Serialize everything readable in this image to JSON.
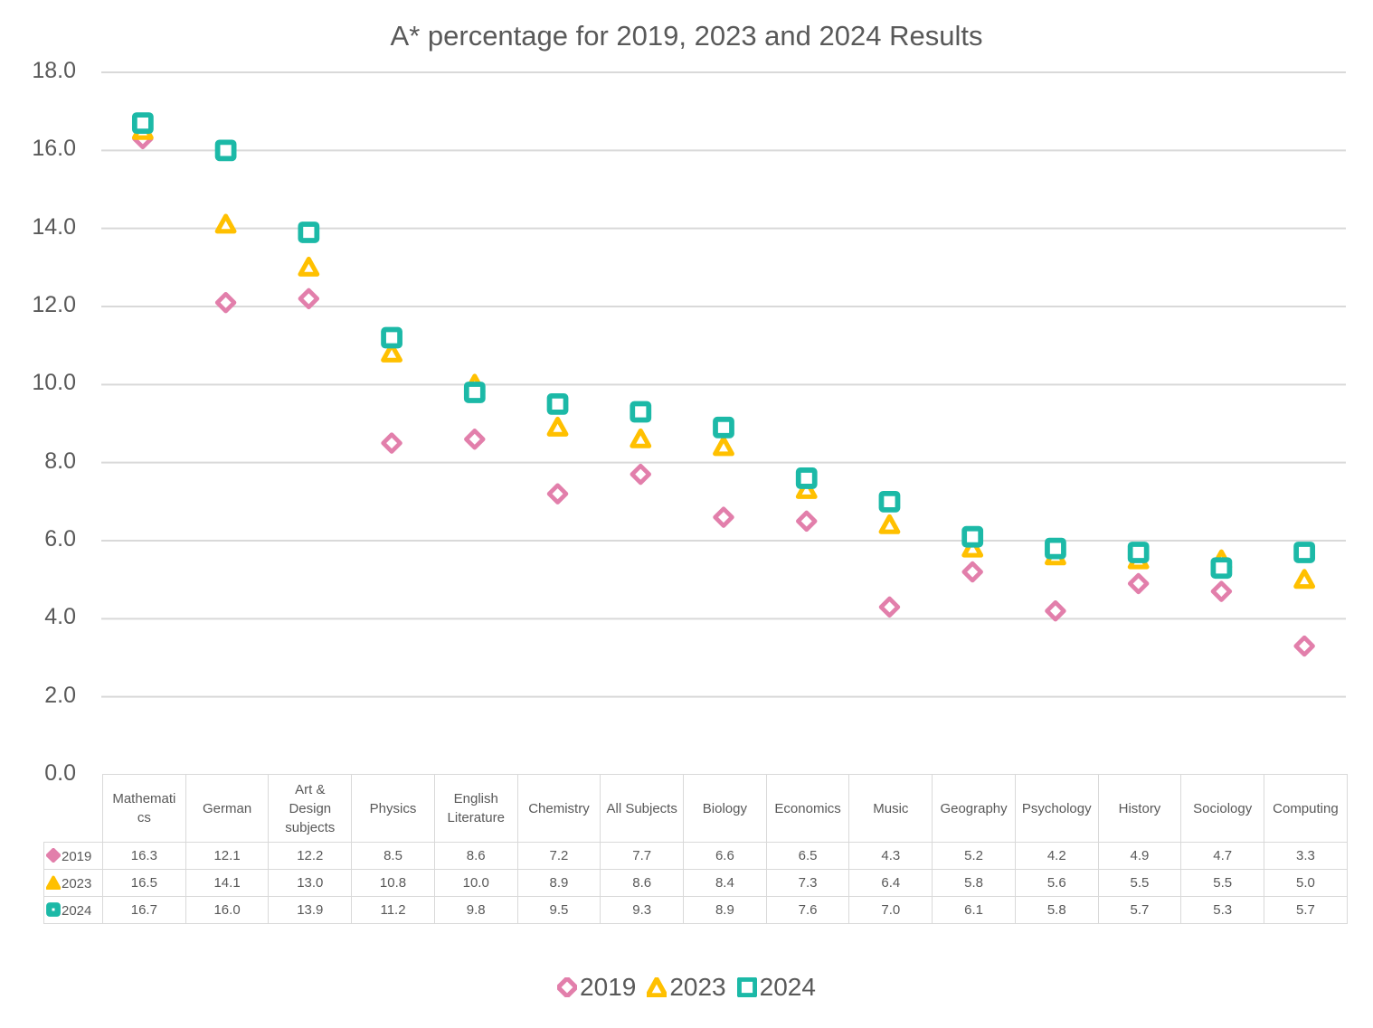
{
  "chart_data": {
    "type": "scatter",
    "title": "A* percentage for 2019, 2023 and 2024 Results",
    "xlabel": "",
    "ylabel": "",
    "ylim": [
      0,
      18
    ],
    "yticks": [
      "0.0",
      "2.0",
      "4.0",
      "6.0",
      "8.0",
      "10.0",
      "12.0",
      "14.0",
      "16.0",
      "18.0"
    ],
    "grid": true,
    "legend_position": "bottom",
    "data_table": true,
    "categories": [
      "Mathematics",
      "German",
      "Art & Design subjects",
      "Physics",
      "English Literature",
      "Chemistry",
      "All Subjects",
      "Biology",
      "Economics",
      "Music",
      "Geography",
      "Psychology",
      "History",
      "Sociology",
      "Computing"
    ],
    "category_table_labels": [
      [
        "Mathemati",
        "cs"
      ],
      [
        "German"
      ],
      [
        "Art &",
        "Design",
        "subjects"
      ],
      [
        "Physics"
      ],
      [
        "English",
        "Literature"
      ],
      [
        "Chemistry"
      ],
      [
        "All Subjects"
      ],
      [
        "Biology"
      ],
      [
        "Economics"
      ],
      [
        "Music"
      ],
      [
        "Geography"
      ],
      [
        "Psychology"
      ],
      [
        "History"
      ],
      [
        "Sociology"
      ],
      [
        "Computing"
      ]
    ],
    "series": [
      {
        "name": "2019",
        "marker": "diamond",
        "color": "#E27FAB",
        "values": [
          16.3,
          12.1,
          12.2,
          8.5,
          8.6,
          7.2,
          7.7,
          6.6,
          6.5,
          4.3,
          5.2,
          4.2,
          4.9,
          4.7,
          3.3
        ]
      },
      {
        "name": "2023",
        "marker": "triangle",
        "color": "#FFC000",
        "values": [
          16.5,
          14.1,
          13.0,
          10.8,
          10.0,
          8.9,
          8.6,
          8.4,
          7.3,
          6.4,
          5.8,
          5.6,
          5.5,
          5.5,
          5.0
        ]
      },
      {
        "name": "2024",
        "marker": "square",
        "color": "#1CB9A7",
        "values": [
          16.7,
          16.0,
          13.9,
          11.2,
          9.8,
          9.5,
          9.3,
          8.9,
          7.6,
          7.0,
          6.1,
          5.8,
          5.7,
          5.3,
          5.7
        ]
      }
    ]
  },
  "colors": {
    "gridline": "#d9d9d9",
    "text": "#595959"
  }
}
